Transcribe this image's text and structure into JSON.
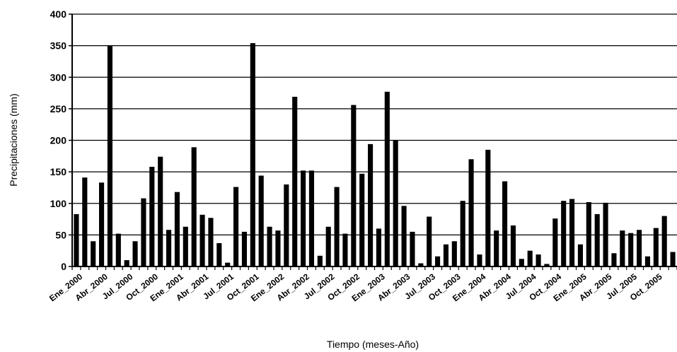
{
  "chart_data": {
    "type": "bar",
    "title": "",
    "xlabel": "Tiempo (meses-Año)",
    "ylabel": "Precipitaciones (mm)",
    "ylim": [
      0,
      400
    ],
    "yticks": [
      0,
      50,
      100,
      150,
      200,
      250,
      300,
      350,
      400
    ],
    "grid": true,
    "legend": "none",
    "bar_color": "#000000",
    "x_tick_labels": [
      "Ene_2000",
      "Abr_2000",
      "Jul_2000",
      "Oct_2000",
      "Ene_2001",
      "Abr_2001",
      "Jul_2001",
      "Oct_2001",
      "Ene_2002",
      "Abr_2002",
      "Jul_2002",
      "Oct_2002",
      "Ene_2003",
      "Abr_2003",
      "Jul_2003",
      "Oct_2003",
      "Ene_2004",
      "Abr_2004",
      "Jul_2004",
      "Oct_2004",
      "Ene_2005",
      "Abr_2005",
      "Jul_2005",
      "Oct_2005"
    ],
    "tick_every": 3,
    "values": [
      83,
      141,
      40,
      133,
      350,
      52,
      10,
      40,
      108,
      158,
      174,
      58,
      118,
      63,
      189,
      82,
      77,
      37,
      6,
      126,
      55,
      354,
      144,
      63,
      57,
      130,
      269,
      152,
      152,
      17,
      63,
      126,
      52,
      256,
      147,
      194,
      60,
      277,
      200,
      96,
      55,
      5,
      79,
      16,
      35,
      40,
      104,
      170,
      19,
      185,
      57,
      135,
      65,
      12,
      25,
      19,
      4,
      76,
      104,
      107,
      35,
      102,
      83,
      101,
      21,
      57,
      53,
      58,
      16,
      61,
      80,
      23
    ]
  }
}
